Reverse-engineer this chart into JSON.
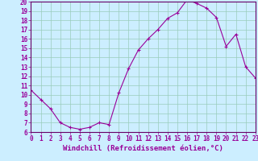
{
  "x": [
    0,
    1,
    2,
    3,
    4,
    5,
    6,
    7,
    8,
    9,
    10,
    11,
    12,
    13,
    14,
    15,
    16,
    17,
    18,
    19,
    20,
    21,
    22,
    23
  ],
  "y": [
    10.5,
    9.5,
    8.5,
    7.0,
    6.5,
    6.3,
    6.5,
    7.0,
    6.8,
    10.2,
    12.8,
    14.8,
    16.0,
    17.0,
    18.2,
    18.8,
    20.2,
    19.8,
    19.3,
    18.3,
    15.2,
    16.5,
    13.0,
    11.8
  ],
  "line_color": "#990099",
  "marker": "+",
  "marker_size": 3,
  "marker_linewidth": 0.8,
  "line_width": 0.8,
  "bg_color": "#cceeff",
  "grid_color": "#99ccbb",
  "xlabel": "Windchill (Refroidissement éolien,°C)",
  "xlim": [
    0,
    23
  ],
  "ylim": [
    6,
    20
  ],
  "yticks": [
    6,
    7,
    8,
    9,
    10,
    11,
    12,
    13,
    14,
    15,
    16,
    17,
    18,
    19,
    20
  ],
  "xticks": [
    0,
    1,
    2,
    3,
    4,
    5,
    6,
    7,
    8,
    9,
    10,
    11,
    12,
    13,
    14,
    15,
    16,
    17,
    18,
    19,
    20,
    21,
    22,
    23
  ],
  "tick_label_size": 5.5,
  "xlabel_size": 6.5,
  "spine_color": "#660066",
  "label_color": "#990099"
}
